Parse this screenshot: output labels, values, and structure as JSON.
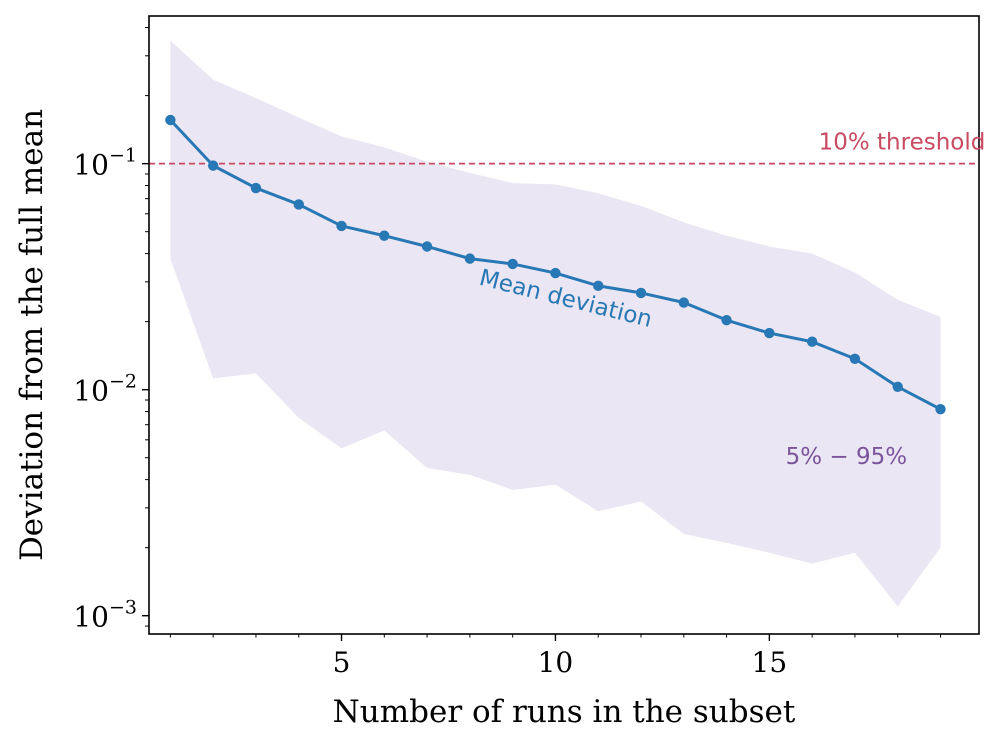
{
  "chart_data": {
    "type": "line",
    "xlabel": "Number of runs in the subset",
    "ylabel": "Deviation from the full mean",
    "xscale": "linear",
    "yscale": "log",
    "xlim": [
      0.5,
      19.9
    ],
    "ylim": [
      0.00083,
      0.45
    ],
    "xticks": [
      5,
      10,
      15
    ],
    "yticks": [
      {
        "value": 0.001,
        "base": "10",
        "exp": "−3"
      },
      {
        "value": 0.01,
        "base": "10",
        "exp": "−2"
      },
      {
        "value": 0.1,
        "base": "10",
        "exp": "−1"
      }
    ],
    "grid": false,
    "x": [
      1,
      2,
      3,
      4,
      5,
      6,
      7,
      8,
      9,
      10,
      11,
      12,
      13,
      14,
      15,
      16,
      17,
      18,
      19
    ],
    "series": [
      {
        "name": "Mean deviation",
        "color": "#2878b5",
        "values": [
          0.156,
          0.098,
          0.078,
          0.066,
          0.053,
          0.048,
          0.043,
          0.038,
          0.036,
          0.0328,
          0.0288,
          0.0268,
          0.0243,
          0.0203,
          0.0178,
          0.0163,
          0.0137,
          0.0103,
          0.0082
        ]
      }
    ],
    "band": {
      "label": "5% − 95%",
      "color": "#ebe6f3",
      "text_color": "#7b559c",
      "upper": [
        0.35,
        0.235,
        0.195,
        0.16,
        0.132,
        0.118,
        0.102,
        0.091,
        0.082,
        0.081,
        0.074,
        0.065,
        0.055,
        0.048,
        0.043,
        0.04,
        0.033,
        0.025,
        0.021
      ],
      "lower": [
        0.038,
        0.0112,
        0.0118,
        0.0075,
        0.0055,
        0.0066,
        0.0045,
        0.0042,
        0.0036,
        0.0038,
        0.0029,
        0.0032,
        0.0023,
        0.0021,
        0.0019,
        0.0017,
        0.0019,
        0.0011,
        0.002
      ]
    },
    "threshold": {
      "value": 0.1,
      "label": "10% threshold",
      "color": "#c94a63"
    }
  }
}
